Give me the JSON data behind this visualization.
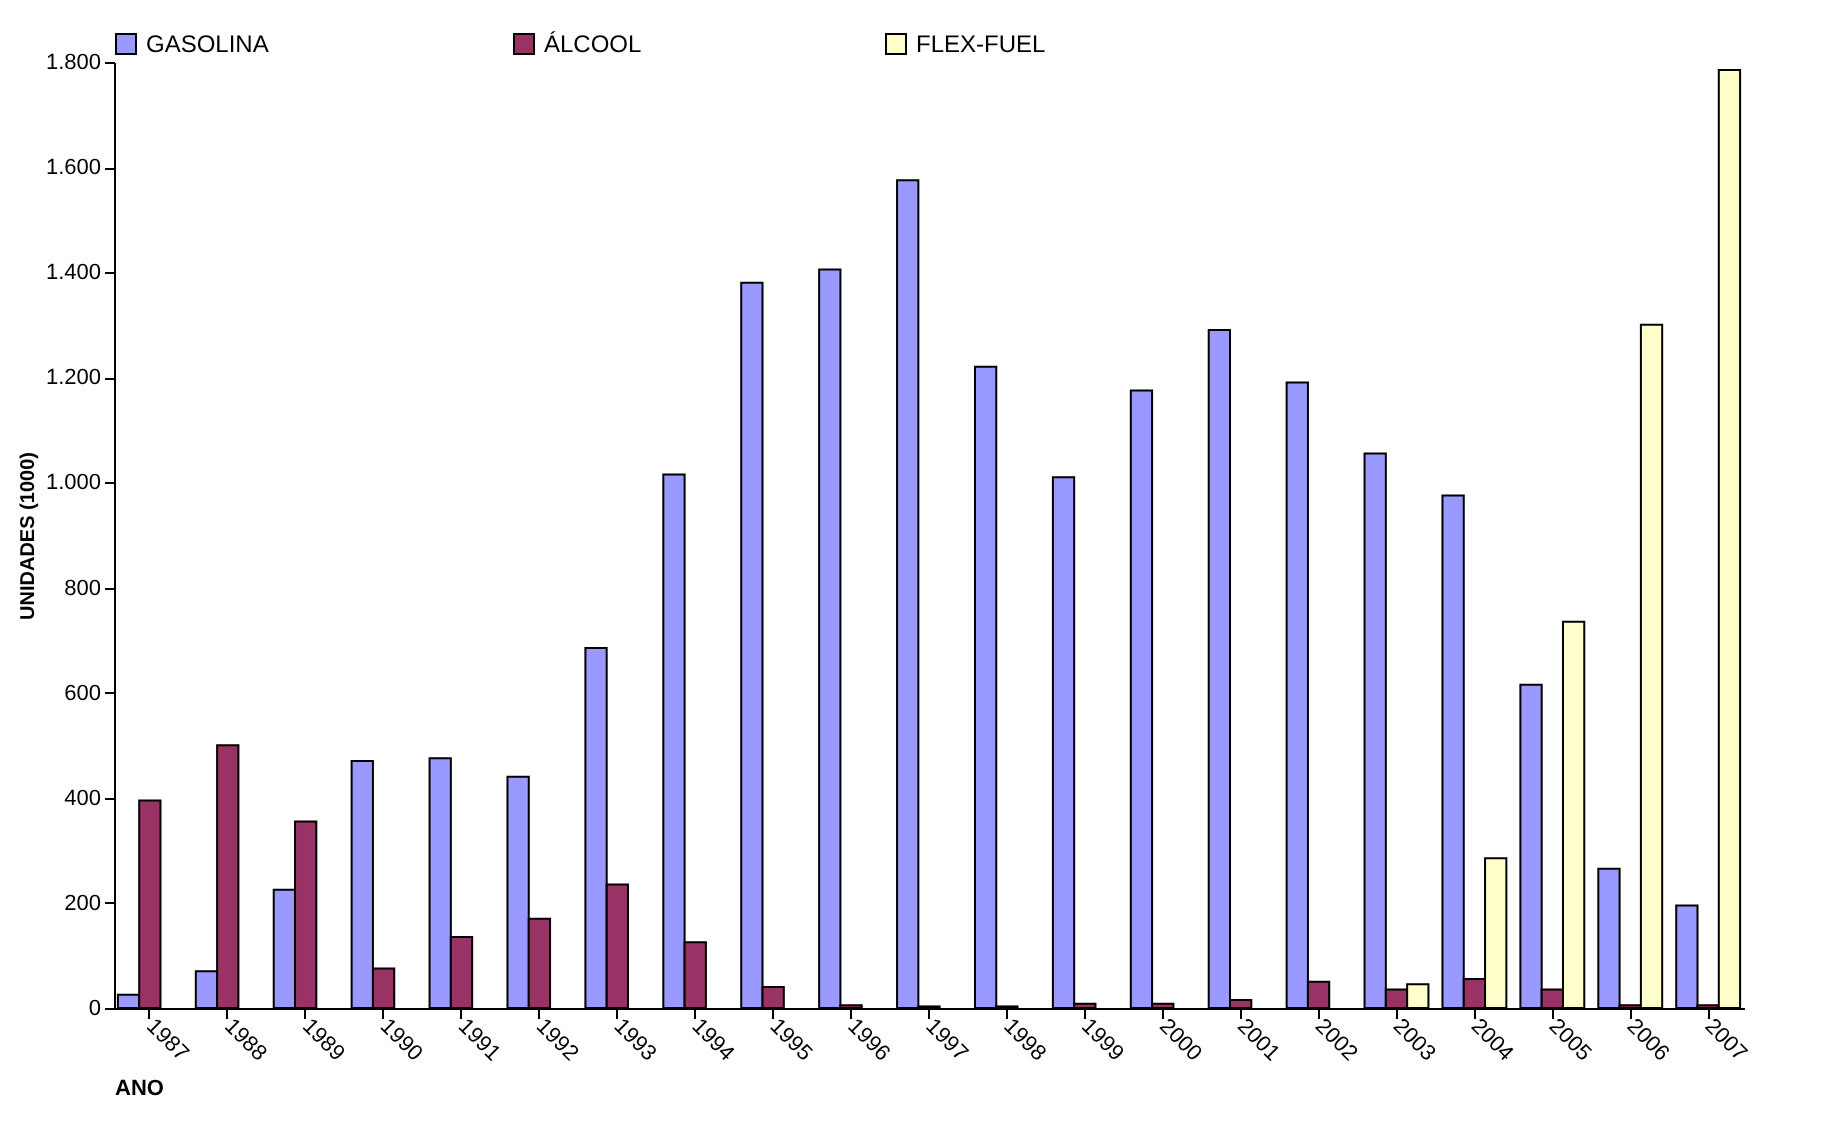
{
  "chart_data": {
    "type": "bar",
    "xlabel": "ANO",
    "ylabel": "UNIDADES (1000)",
    "categories": [
      "1987",
      "1988",
      "1989",
      "1990",
      "1991",
      "1992",
      "1993",
      "1994",
      "1995",
      "1996",
      "1997",
      "1998",
      "1999",
      "2000",
      "2001",
      "2002",
      "2003",
      "2004",
      "2005",
      "2006",
      "2007"
    ],
    "series": [
      {
        "name": "GASOLINA",
        "color": "#9999ff",
        "values": [
          25,
          70,
          225,
          470,
          475,
          440,
          685,
          1015,
          1380,
          1405,
          1575,
          1220,
          1010,
          1175,
          1290,
          1190,
          1055,
          975,
          615,
          265,
          195
        ]
      },
      {
        "name": "ÁLCOOL",
        "color": "#993366",
        "values": [
          395,
          500,
          355,
          75,
          135,
          170,
          235,
          125,
          40,
          5,
          3,
          3,
          8,
          8,
          15,
          50,
          35,
          55,
          35,
          5,
          5
        ]
      },
      {
        "name": "FLEX-FUEL",
        "color": "#ffffcc",
        "values": [
          null,
          null,
          null,
          null,
          null,
          null,
          null,
          null,
          null,
          null,
          null,
          null,
          null,
          null,
          null,
          null,
          45,
          285,
          735,
          1300,
          1785
        ]
      }
    ],
    "ylim": [
      0,
      1800
    ],
    "yticks": [
      0,
      200,
      400,
      600,
      800,
      {
        "value": 1000,
        "label": "1.000"
      },
      {
        "value": 1200,
        "label": "1.200"
      },
      {
        "value": 1400,
        "label": "1.400"
      },
      {
        "value": 1600,
        "label": "1.600"
      },
      {
        "value": 1800,
        "label": "1.800"
      }
    ],
    "legend": "top",
    "grid": false
  }
}
